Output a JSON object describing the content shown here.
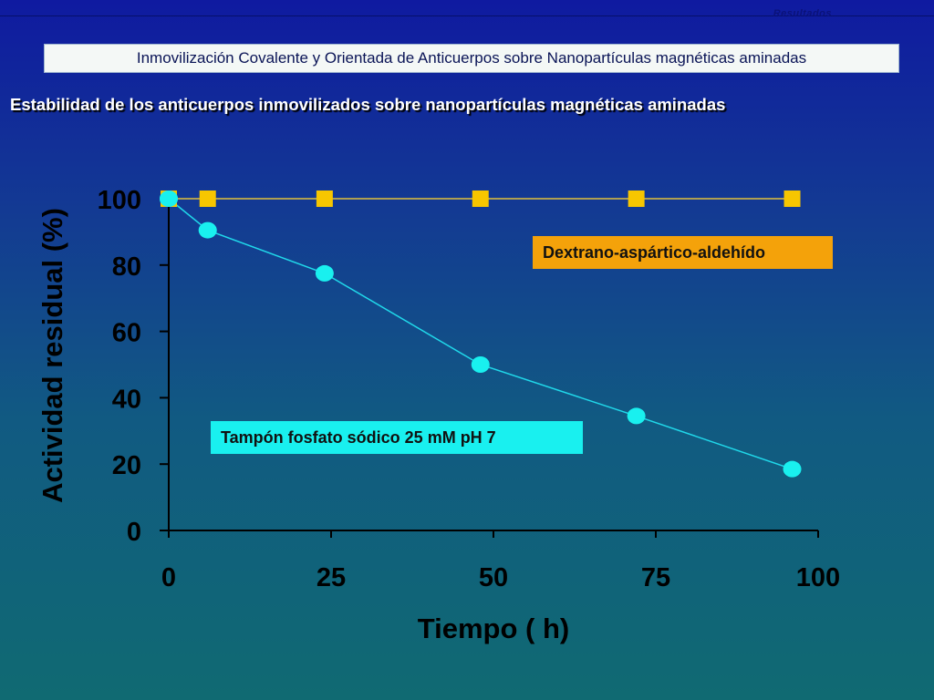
{
  "slide": {
    "section_label": "Resultados",
    "banner": "Inmovilización Covalente y Orientada de Anticuerpos sobre Nanopartículas magnéticas aminadas",
    "subtitle": "Estabilidad de los anticuerpos inmovilizados sobre nanopartículas magnéticas aminadas"
  },
  "chart_data": {
    "type": "line",
    "xlabel": "Tiempo ( h)",
    "ylabel": "Actividad residual (%)",
    "xlim": [
      0,
      100
    ],
    "ylim": [
      0,
      100
    ],
    "x_ticks": [
      0,
      25,
      50,
      75,
      100
    ],
    "y_ticks": [
      0,
      20,
      40,
      60,
      80,
      100
    ],
    "grid": false,
    "series": [
      {
        "name": "Dextrano-aspártico-aldehído",
        "marker": "square",
        "color": "#f7c600",
        "line_color": "#e2c13c",
        "x": [
          0,
          6,
          24,
          48,
          72,
          96
        ],
        "y": [
          100,
          100,
          100,
          100,
          100,
          100
        ]
      },
      {
        "name": "Tampón fosfato sódico  25 mM pH 7",
        "marker": "circle",
        "color": "#19f0ef",
        "line_color": "#20d8ea",
        "x": [
          0,
          6,
          24,
          48,
          72,
          96
        ],
        "y": [
          100,
          90.5,
          77.5,
          50,
          34.5,
          18.5
        ]
      }
    ]
  }
}
